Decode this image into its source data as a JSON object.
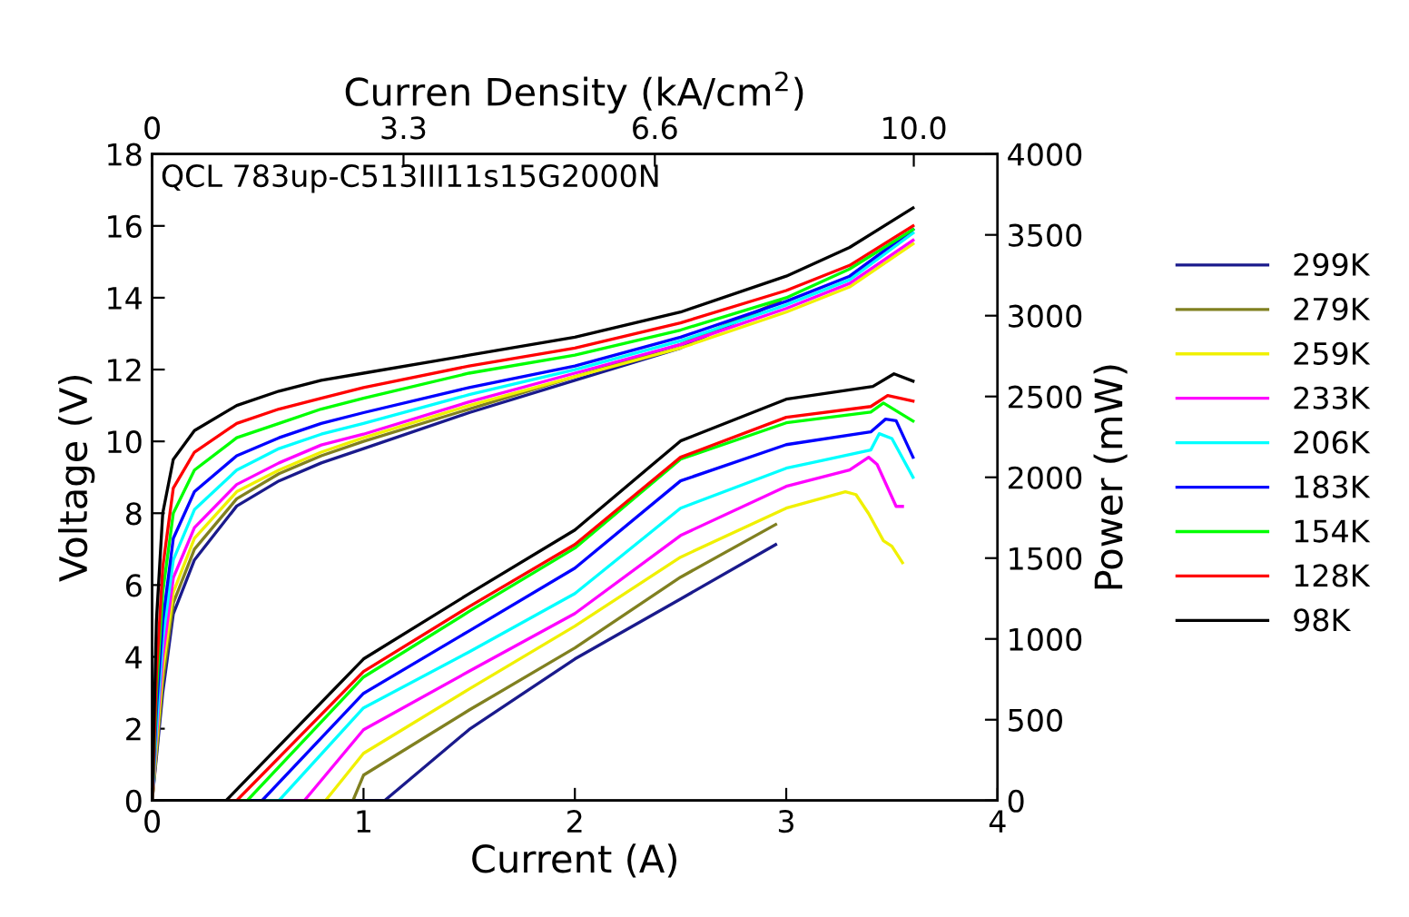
{
  "chart_data": {
    "type": "line",
    "xlabel": "Current (A)",
    "ylabel": "Voltage (V)",
    "y2label": "Power (mW)",
    "x2label": "Curren Density (kA/cm$^{2}$)",
    "annotations": [
      "QCL 783up-C513III11s15G2000N"
    ],
    "xlim": [
      0,
      4
    ],
    "xticks": [
      0,
      1,
      2,
      3,
      4
    ],
    "ylim": [
      0,
      18
    ],
    "yticks": [
      0,
      2,
      4,
      6,
      8,
      10,
      12,
      14,
      16,
      18
    ],
    "y2lim": [
      0,
      4000
    ],
    "y2ticks": [
      0,
      500,
      1000,
      1500,
      2000,
      2500,
      3000,
      3500,
      4000
    ],
    "x2lim": [
      0,
      11.1
    ],
    "x2ticks": [
      0,
      3.3,
      6.6,
      {
        "value": 10.0,
        "label": "10.0"
      }
    ],
    "legend": "right",
    "grid": false,
    "line_style": "solid",
    "marker": "none",
    "series": [
      {
        "name": "299K",
        "color": "#1a1a8c",
        "x": [
          0,
          0.02,
          0.05,
          0.1,
          0.2,
          0.4,
          0.6,
          0.8,
          1.0,
          1.5,
          2.0,
          2.5,
          2.97
        ],
        "values": [
          0,
          1.2,
          3.0,
          5.2,
          6.7,
          8.2,
          8.9,
          9.4,
          9.8,
          10.8,
          11.7,
          12.6,
          13.9
        ]
      },
      {
        "name": "279K",
        "color": "#808020",
        "x": [
          0,
          0.02,
          0.05,
          0.1,
          0.2,
          0.4,
          0.6,
          0.8,
          1.0,
          1.5,
          2.0,
          2.5,
          2.97
        ],
        "values": [
          0,
          1.3,
          3.3,
          5.5,
          7.0,
          8.4,
          9.1,
          9.6,
          10.0,
          10.9,
          11.8,
          12.7,
          13.9
        ]
      },
      {
        "name": "259K",
        "color": "#f0f000",
        "x": [
          0,
          0.02,
          0.05,
          0.1,
          0.2,
          0.4,
          0.6,
          0.8,
          1.0,
          1.5,
          2.0,
          2.5,
          3.0,
          3.3,
          3.6
        ],
        "values": [
          0,
          1.5,
          3.6,
          5.8,
          7.3,
          8.6,
          9.2,
          9.7,
          10.1,
          11.0,
          11.8,
          12.6,
          13.6,
          14.3,
          15.5
        ]
      },
      {
        "name": "233K",
        "color": "#ff00ff",
        "x": [
          0,
          0.02,
          0.05,
          0.1,
          0.2,
          0.4,
          0.6,
          0.8,
          1.0,
          1.5,
          2.0,
          2.5,
          3.0,
          3.3,
          3.6
        ],
        "values": [
          0,
          1.8,
          4.0,
          6.2,
          7.6,
          8.8,
          9.4,
          9.9,
          10.2,
          11.1,
          11.9,
          12.7,
          13.7,
          14.4,
          15.6
        ]
      },
      {
        "name": "206K",
        "color": "#00ffff",
        "x": [
          0,
          0.02,
          0.05,
          0.1,
          0.2,
          0.4,
          0.6,
          0.8,
          1.0,
          1.5,
          2.0,
          2.5,
          3.0,
          3.3,
          3.6
        ],
        "values": [
          0,
          2.0,
          4.5,
          6.7,
          8.1,
          9.2,
          9.8,
          10.2,
          10.5,
          11.3,
          12.0,
          12.8,
          13.8,
          14.5,
          15.8
        ]
      },
      {
        "name": "183K",
        "color": "#0000ff",
        "x": [
          0,
          0.02,
          0.05,
          0.1,
          0.2,
          0.4,
          0.6,
          0.8,
          1.0,
          1.5,
          2.0,
          2.5,
          3.0,
          3.3,
          3.6
        ],
        "values": [
          0,
          2.5,
          5.0,
          7.3,
          8.6,
          9.6,
          10.1,
          10.5,
          10.8,
          11.5,
          12.1,
          12.9,
          13.9,
          14.6,
          15.9
        ]
      },
      {
        "name": "154K",
        "color": "#00ff00",
        "x": [
          0,
          0.02,
          0.05,
          0.1,
          0.2,
          0.4,
          0.6,
          0.8,
          1.0,
          1.5,
          2.0,
          2.5,
          3.0,
          3.3,
          3.6
        ],
        "values": [
          0,
          3.0,
          5.8,
          8.0,
          9.2,
          10.1,
          10.5,
          10.9,
          11.2,
          11.9,
          12.4,
          13.1,
          14.0,
          14.8,
          15.9
        ]
      },
      {
        "name": "128K",
        "color": "#ff0000",
        "x": [
          0,
          0.02,
          0.05,
          0.1,
          0.2,
          0.4,
          0.6,
          0.8,
          1.0,
          1.5,
          2.0,
          2.5,
          3.0,
          3.3,
          3.6
        ],
        "values": [
          0,
          3.5,
          6.5,
          8.7,
          9.7,
          10.5,
          10.9,
          11.2,
          11.5,
          12.1,
          12.6,
          13.3,
          14.2,
          14.9,
          16.0
        ]
      },
      {
        "name": "98K",
        "color": "#000000",
        "x": [
          0,
          0.02,
          0.05,
          0.1,
          0.2,
          0.4,
          0.6,
          0.8,
          1.0,
          1.5,
          2.0,
          2.5,
          3.0,
          3.3,
          3.6
        ],
        "values": [
          0,
          5.0,
          8.0,
          9.5,
          10.3,
          11.0,
          11.4,
          11.7,
          11.9,
          12.4,
          12.9,
          13.6,
          14.6,
          15.4,
          16.5
        ]
      },
      {
        "axis": "y2",
        "color": "#1a1a8c",
        "x": [
          0.02,
          1.1,
          1.5,
          2.0,
          2.5,
          2.95
        ],
        "values": [
          0,
          0,
          440,
          876,
          1247,
          1584
        ]
      },
      {
        "axis": "y2",
        "color": "#808020",
        "x": [
          0.02,
          0.95,
          1.0,
          1.5,
          2.0,
          2.5,
          2.95
        ],
        "values": [
          0,
          0,
          157,
          560,
          944,
          1382,
          1708
        ]
      },
      {
        "axis": "y2",
        "color": "#f0f000",
        "x": [
          0.02,
          0.82,
          1.0,
          1.5,
          2.0,
          2.5,
          3.0,
          3.28,
          3.33,
          3.39,
          3.46,
          3.5,
          3.55
        ],
        "values": [
          0,
          0,
          292,
          690,
          1079,
          1506,
          1809,
          1910,
          1893,
          1775,
          1607,
          1573,
          1472
        ]
      },
      {
        "axis": "y2",
        "color": "#ff00ff",
        "x": [
          0.02,
          0.72,
          1.0,
          1.5,
          2.0,
          2.5,
          3.0,
          3.3,
          3.39,
          3.43,
          3.52,
          3.55
        ],
        "values": [
          0,
          0,
          438,
          800,
          1157,
          1640,
          1944,
          2045,
          2124,
          2080,
          1820,
          1820
        ]
      },
      {
        "axis": "y2",
        "color": "#00ffff",
        "x": [
          0.02,
          0.6,
          1.0,
          1.5,
          2.0,
          2.5,
          3.0,
          3.4,
          3.44,
          3.5,
          3.6
        ],
        "values": [
          0,
          0,
          573,
          920,
          1281,
          1809,
          2056,
          2169,
          2270,
          2240,
          2000
        ]
      },
      {
        "axis": "y2",
        "color": "#0000ff",
        "x": [
          0.02,
          0.52,
          1.0,
          1.5,
          2.0,
          2.5,
          3.0,
          3.4,
          3.47,
          3.52,
          3.6
        ],
        "values": [
          0,
          0,
          663,
          1050,
          1438,
          1978,
          2202,
          2281,
          2360,
          2350,
          2124
        ]
      },
      {
        "axis": "y2",
        "color": "#00ff00",
        "x": [
          0.02,
          0.45,
          1.0,
          1.5,
          2.0,
          2.5,
          3.0,
          3.4,
          3.46,
          3.6
        ],
        "values": [
          0,
          0,
          764,
          1170,
          1562,
          2112,
          2337,
          2404,
          2460,
          2348
        ]
      },
      {
        "axis": "y2",
        "color": "#ff0000",
        "x": [
          0.02,
          0.4,
          1.0,
          1.5,
          2.0,
          2.5,
          3.0,
          3.4,
          3.48,
          3.6
        ],
        "values": [
          0,
          0,
          798,
          1200,
          1584,
          2124,
          2371,
          2438,
          2506,
          2472
        ]
      },
      {
        "axis": "y2",
        "color": "#000000",
        "x": [
          0.02,
          0.35,
          1.0,
          1.5,
          2.0,
          2.5,
          3.0,
          3.41,
          3.51,
          3.6
        ],
        "values": [
          0,
          0,
          876,
          1280,
          1674,
          2225,
          2483,
          2562,
          2640,
          2595
        ]
      }
    ]
  }
}
